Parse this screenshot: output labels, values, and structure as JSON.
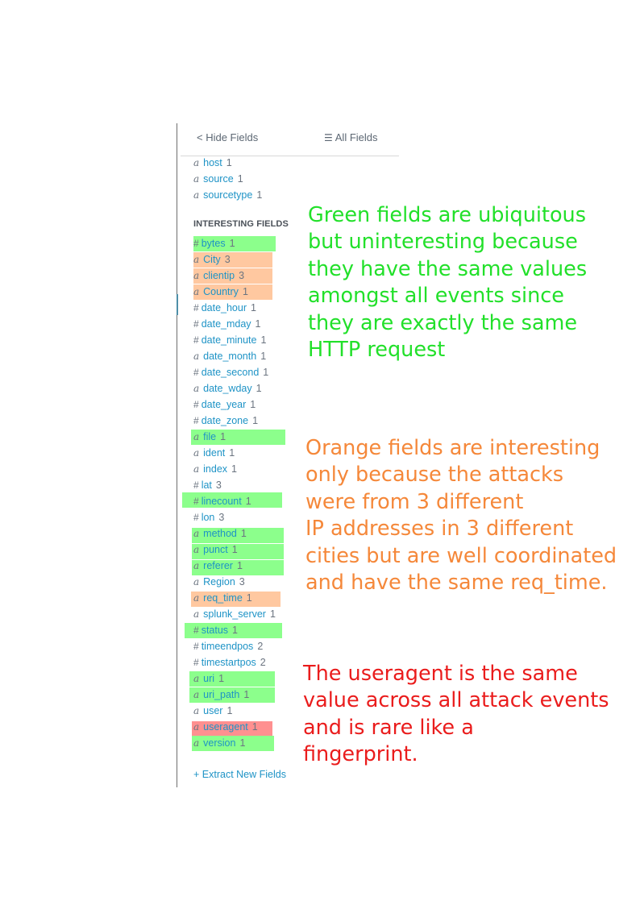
{
  "header": {
    "hide_label": "< Hide Fields",
    "all_label": "All Fields",
    "all_icon": "list-icon"
  },
  "selected_fields": [
    {
      "type": "a",
      "name": "host",
      "count": "1"
    },
    {
      "type": "a",
      "name": "source",
      "count": "1"
    },
    {
      "type": "a",
      "name": "sourcetype",
      "count": "1"
    }
  ],
  "interesting_title": "INTERESTING FIELDS",
  "interesting_fields": [
    {
      "type": "#",
      "name": "bytes",
      "count": "1",
      "highlight": "green"
    },
    {
      "type": "a",
      "name": "City",
      "count": "3",
      "highlight": "orange"
    },
    {
      "type": "a",
      "name": "clientip",
      "count": "3",
      "highlight": "orange"
    },
    {
      "type": "a",
      "name": "Country",
      "count": "1",
      "highlight": "orange"
    },
    {
      "type": "#",
      "name": "date_hour",
      "count": "1",
      "highlight": ""
    },
    {
      "type": "#",
      "name": "date_mday",
      "count": "1",
      "highlight": ""
    },
    {
      "type": "#",
      "name": "date_minute",
      "count": "1",
      "highlight": ""
    },
    {
      "type": "a",
      "name": "date_month",
      "count": "1",
      "highlight": ""
    },
    {
      "type": "#",
      "name": "date_second",
      "count": "1",
      "highlight": ""
    },
    {
      "type": "a",
      "name": "date_wday",
      "count": "1",
      "highlight": ""
    },
    {
      "type": "#",
      "name": "date_year",
      "count": "1",
      "highlight": ""
    },
    {
      "type": "#",
      "name": "date_zone",
      "count": "1",
      "highlight": ""
    },
    {
      "type": "a",
      "name": "file",
      "count": "1",
      "highlight": "green"
    },
    {
      "type": "a",
      "name": "ident",
      "count": "1",
      "highlight": ""
    },
    {
      "type": "a",
      "name": "index",
      "count": "1",
      "highlight": ""
    },
    {
      "type": "#",
      "name": "lat",
      "count": "3",
      "highlight": ""
    },
    {
      "type": "#",
      "name": "linecount",
      "count": "1",
      "highlight": "green"
    },
    {
      "type": "#",
      "name": "lon",
      "count": "3",
      "highlight": ""
    },
    {
      "type": "a",
      "name": "method",
      "count": "1",
      "highlight": "green"
    },
    {
      "type": "a",
      "name": "punct",
      "count": "1",
      "highlight": "green"
    },
    {
      "type": "a",
      "name": "referer",
      "count": "1",
      "highlight": "green"
    },
    {
      "type": "a",
      "name": "Region",
      "count": "3",
      "highlight": ""
    },
    {
      "type": "a",
      "name": "req_time",
      "count": "1",
      "highlight": "orange"
    },
    {
      "type": "a",
      "name": "splunk_server",
      "count": "1",
      "highlight": ""
    },
    {
      "type": "#",
      "name": "status",
      "count": "1",
      "highlight": "green"
    },
    {
      "type": "#",
      "name": "timeendpos",
      "count": "2",
      "highlight": ""
    },
    {
      "type": "#",
      "name": "timestartpos",
      "count": "2",
      "highlight": ""
    },
    {
      "type": "a",
      "name": "uri",
      "count": "1",
      "highlight": "green"
    },
    {
      "type": "a",
      "name": "uri_path",
      "count": "1",
      "highlight": "green"
    },
    {
      "type": "a",
      "name": "user",
      "count": "1",
      "highlight": ""
    },
    {
      "type": "a",
      "name": "useragent",
      "count": "1",
      "highlight": "red"
    },
    {
      "type": "a",
      "name": "version",
      "count": "1",
      "highlight": "green"
    }
  ],
  "extract_label": "+ Extract New Fields",
  "notes": {
    "green": {
      "color": "#22e02a",
      "lines": [
        "Green fields are ubiquitous",
        "but uninteresting because",
        "they have the same values",
        "amongst all events since",
        "they are exactly the same",
        "HTTP request"
      ]
    },
    "orange": {
      "color": "#f5883a",
      "lines": [
        "Orange fields are interesting",
        "only because the attacks",
        "were from 3 different",
        "IP addresses in 3 different",
        "cities but are well coordinated",
        "and have the same req_time."
      ]
    },
    "red": {
      "color": "#ea1c1c",
      "lines": [
        "The useragent is the same",
        "value across all attack events",
        "and is rare like a",
        "fingerprint."
      ]
    }
  },
  "highlight_colors": {
    "green": "#8cff8c",
    "orange": "#ffc8a0",
    "red": "#ff9090"
  }
}
